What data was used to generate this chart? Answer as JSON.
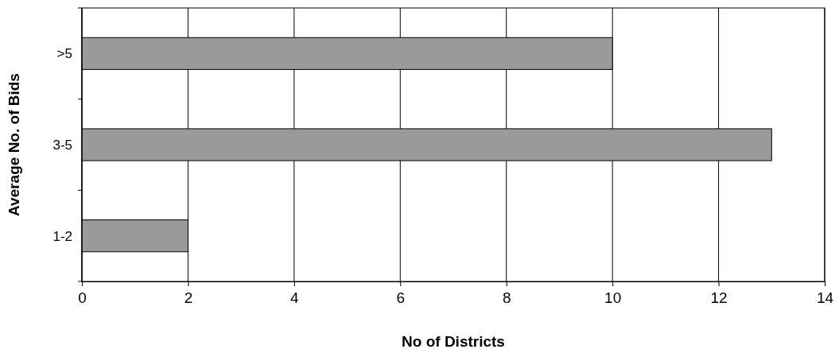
{
  "chart_data": {
    "type": "bar",
    "orientation": "horizontal",
    "xlabel": "No of Districts",
    "ylabel": "Average No. of Bids",
    "categories": [
      ">5",
      "3-5",
      "1-2"
    ],
    "values": [
      10,
      13,
      2
    ],
    "color": "#9a9a9a",
    "xlim": [
      0,
      14
    ],
    "xticks": [
      0,
      2,
      4,
      6,
      8,
      10,
      12,
      14
    ],
    "grid": "x"
  }
}
